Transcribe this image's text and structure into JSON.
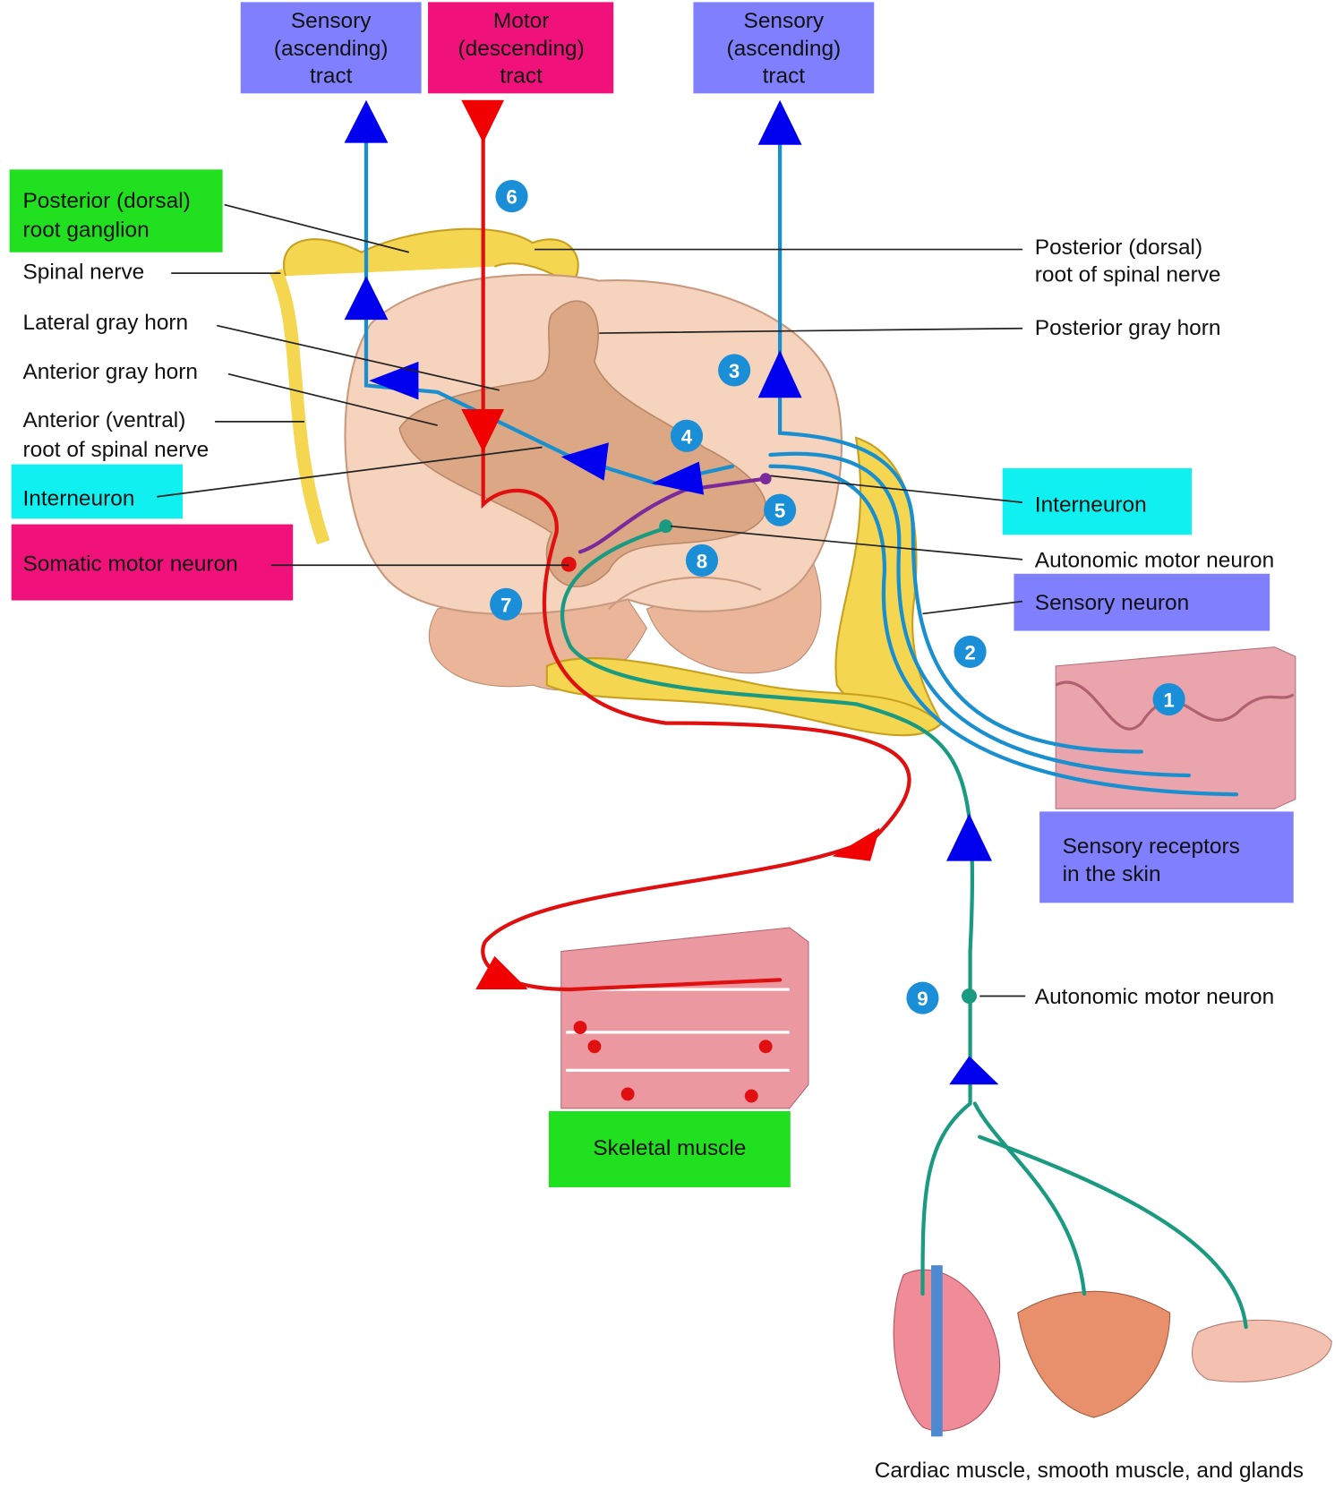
{
  "tracts": [
    {
      "lines": [
        "Sensory",
        "(ascending)",
        "tract"
      ]
    },
    {
      "lines": [
        "Motor",
        "(descending)",
        "tract"
      ]
    },
    {
      "lines": [
        "Sensory",
        "(ascending)",
        "tract"
      ]
    }
  ],
  "labels_left": [
    {
      "lines": [
        "Posterior (dorsal)",
        "root ganglion"
      ]
    },
    {
      "lines": [
        "Spinal nerve"
      ]
    },
    {
      "lines": [
        "Lateral gray horn"
      ]
    },
    {
      "lines": [
        "Anterior gray horn"
      ]
    },
    {
      "lines": [
        "Anterior (ventral)",
        "root of spinal nerve"
      ]
    },
    {
      "lines": [
        "Interneuron"
      ]
    },
    {
      "lines": [
        "Somatic motor neuron"
      ]
    }
  ],
  "labels_right": [
    {
      "lines": [
        "Posterior (dorsal)",
        "root of spinal nerve"
      ]
    },
    {
      "lines": [
        "Posterior gray horn"
      ]
    },
    {
      "lines": [
        "Interneuron"
      ]
    },
    {
      "lines": [
        "Autonomic motor neuron"
      ]
    },
    {
      "lines": [
        "Sensory neuron"
      ]
    },
    {
      "lines": [
        "Sensory receptors",
        "in the skin"
      ]
    },
    {
      "lines": [
        "Autonomic motor neuron"
      ]
    }
  ],
  "steps": [
    "1",
    "2",
    "3",
    "4",
    "5",
    "6",
    "7",
    "8",
    "9"
  ],
  "bottom": {
    "skeletal_muscle": "Skeletal muscle",
    "effectors": "Cardiac muscle, smooth muscle, and glands"
  }
}
